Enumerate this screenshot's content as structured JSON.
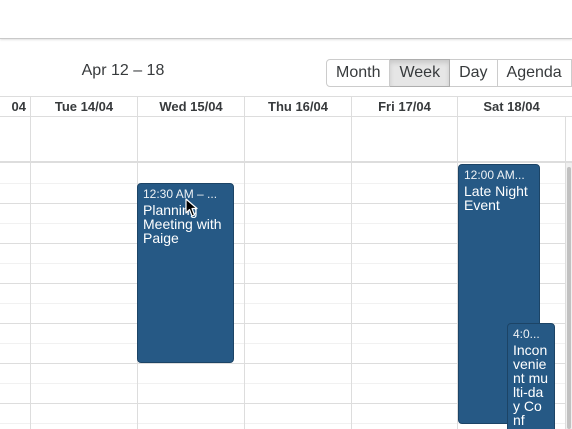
{
  "toolbar": {
    "range_label": "Apr 12 – 18",
    "views": [
      "Month",
      "Week",
      "Day",
      "Agenda"
    ],
    "active_view": "Week"
  },
  "days": [
    {
      "label": "04"
    },
    {
      "label": "Tue 14/04"
    },
    {
      "label": "Wed 15/04"
    },
    {
      "label": "Thu 16/04"
    },
    {
      "label": "Fri 17/04"
    },
    {
      "label": "Sat 18/04"
    }
  ],
  "events": [
    {
      "time": "12:30 AM – ...",
      "title": "Planning Meeting with Paige",
      "day": "Wed 15/04"
    },
    {
      "time": "12:00 AM...",
      "title": "Late Night Event",
      "day": "Sat 18/04"
    },
    {
      "time": "4:0...",
      "title": "Inconvenient multi-day Conf",
      "day": "Sat 18/04"
    }
  ],
  "colors": {
    "event_bg": "#265985",
    "grid_line": "#dddddd",
    "active_button_bg": "#e6e6e6"
  }
}
